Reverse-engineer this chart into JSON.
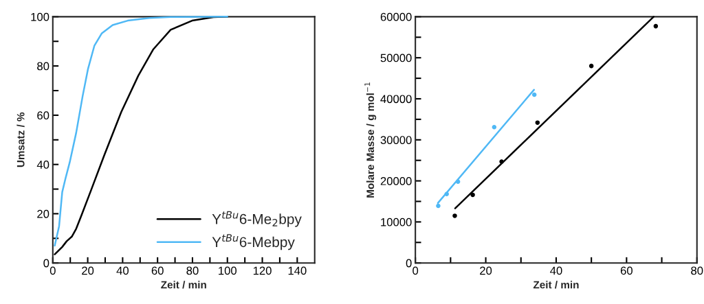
{
  "chart_data": [
    {
      "type": "line",
      "xlabel": "Zeit / min",
      "ylabel": "Umsatz / %",
      "xlim": [
        0,
        150
      ],
      "ylim": [
        0,
        100
      ],
      "xticks": [
        0,
        {
          "value": 10,
          "label": null
        },
        20,
        {
          "value": 30,
          "label": null
        },
        40,
        {
          "value": 50,
          "label": null
        },
        60,
        {
          "value": 70,
          "label": null
        },
        80,
        {
          "value": 90,
          "label": null
        },
        100,
        {
          "value": 110,
          "label": null
        },
        120,
        {
          "value": 130,
          "label": null
        },
        140
      ],
      "yticks": [
        0,
        {
          "value": 10,
          "label": null
        },
        20,
        {
          "value": 30,
          "label": null
        },
        40,
        {
          "value": 50,
          "label": null
        },
        60,
        {
          "value": 70,
          "label": null
        },
        80,
        {
          "value": 90,
          "label": null
        },
        100
      ],
      "legend": "bottom right",
      "grid": false,
      "series": [
        {
          "name": "Y$^{tBu}$6-Me$_{2}$bpy",
          "color": "#000000",
          "x": [
            1.1,
            5.4,
            7.9,
            10.9,
            13.4,
            16.5,
            22,
            29.4,
            39.2,
            49,
            57.6,
            67.5,
            79.8,
            92,
            100
          ],
          "values": [
            3.5,
            6.5,
            8.8,
            10.7,
            13.9,
            19.5,
            29.7,
            43.6,
            61.3,
            76.1,
            86.8,
            94.7,
            98.4,
            99.8,
            100
          ]
        },
        {
          "name": "Y$^{tBu}$6-Mebpy",
          "color": "#4fb8f5",
          "x": [
            1.1,
            3.6,
            5.4,
            7.3,
            9.7,
            13.4,
            17.1,
            20.2,
            23.8,
            28.1,
            34.3,
            42.9,
            55.2,
            67.5,
            100
          ],
          "values": [
            7,
            14.9,
            28.8,
            34.4,
            40.9,
            52.9,
            67.8,
            78.9,
            88.2,
            93.3,
            96.6,
            98.4,
            99.5,
            99.9,
            100
          ]
        }
      ]
    },
    {
      "type": "scatter",
      "xlabel": "Zeit / min",
      "ylabel": "Molare Masse / g mol$^{−1}$",
      "xlim": [
        0,
        80
      ],
      "ylim": [
        0,
        60000
      ],
      "xticks": [
        0,
        {
          "value": 10,
          "label": null
        },
        20,
        {
          "value": 30,
          "label": null
        },
        40,
        {
          "value": 50,
          "label": null
        },
        60,
        {
          "value": 70,
          "label": null
        },
        80
      ],
      "yticks": [
        0,
        {
          "value": 5000,
          "label": null
        },
        10000,
        {
          "value": 15000,
          "label": null
        },
        20000,
        {
          "value": 25000,
          "label": null
        },
        30000,
        {
          "value": 35000,
          "label": null
        },
        40000,
        {
          "value": 45000,
          "label": null
        },
        50000,
        {
          "value": 55000,
          "label": null
        },
        60000
      ],
      "grid": false,
      "series": [
        {
          "type": "scatter",
          "marker": "circle",
          "color": "#4fb8f5",
          "x": [
            6.5,
            8.9,
            12.1,
            22.4,
            33.8
          ],
          "values": [
            13900,
            16800,
            19800,
            33100,
            41000
          ]
        },
        {
          "type": "scatter",
          "marker": "circle",
          "color": "#000000",
          "x": [
            11.2,
            16.3,
            24.5,
            34.7,
            50.0,
            68.3
          ],
          "values": [
            11500,
            16600,
            24700,
            34200,
            48000,
            57700
          ]
        },
        {
          "type": "line",
          "color": "#4fb8f5",
          "x": [
            6.4,
            33.7
          ],
          "values": [
            14600,
            42200
          ]
        },
        {
          "type": "line",
          "color": "#000000",
          "x": [
            11.3,
            67.7
          ],
          "values": [
            13300,
            60000
          ]
        }
      ]
    }
  ]
}
